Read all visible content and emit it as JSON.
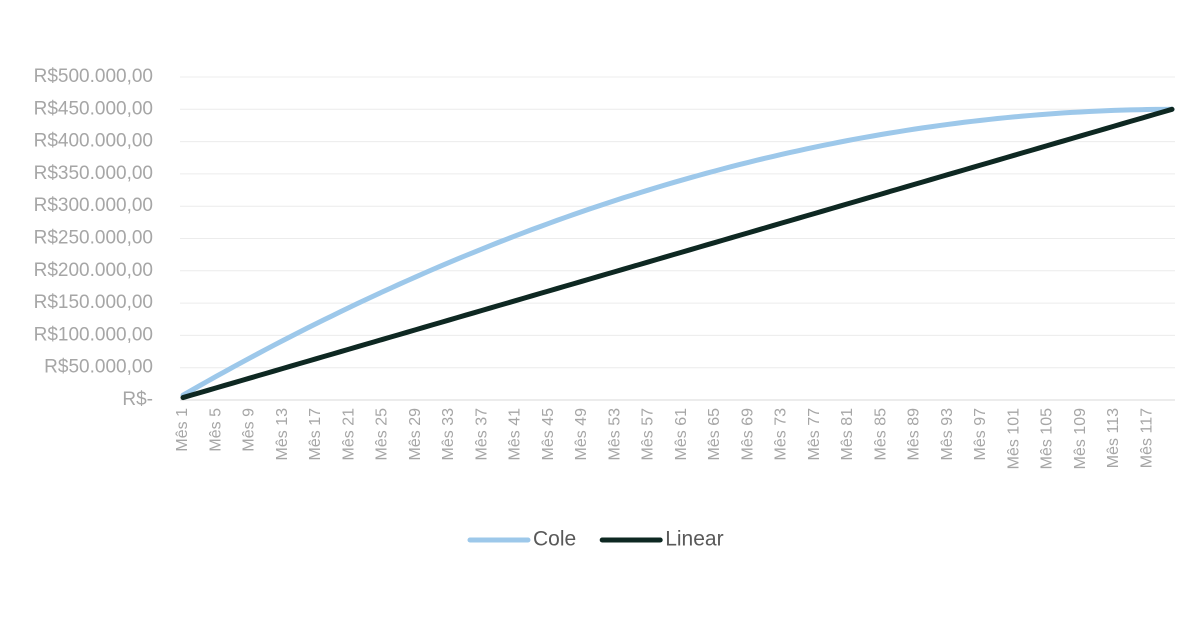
{
  "chart_data": {
    "type": "line",
    "categories": [
      "Mês 1",
      null,
      null,
      null,
      "Mês 5",
      null,
      null,
      null,
      "Mês 9",
      null,
      null,
      null,
      "Mês 13",
      null,
      null,
      null,
      "Mês 17",
      null,
      null,
      null,
      "Mês 21",
      null,
      null,
      null,
      "Mês 25",
      null,
      null,
      null,
      "Mês 29",
      null,
      null,
      null,
      "Mês 33",
      null,
      null,
      null,
      "Mês 37",
      null,
      null,
      null,
      "Mês 41",
      null,
      null,
      null,
      "Mês 45",
      null,
      null,
      null,
      "Mês 49",
      null,
      null,
      null,
      "Mês 53",
      null,
      null,
      null,
      "Mês 57",
      null,
      null,
      null,
      "Mês 61",
      null,
      null,
      null,
      "Mês 65",
      null,
      null,
      null,
      "Mês 69",
      null,
      null,
      null,
      "Mês 73",
      null,
      null,
      null,
      "Mês 77",
      null,
      null,
      null,
      "Mês 81",
      null,
      null,
      null,
      "Mês 85",
      null,
      null,
      null,
      "Mês 89",
      null,
      null,
      null,
      "Mês 93",
      null,
      null,
      null,
      "Mês 97",
      null,
      null,
      null,
      "Mês 101",
      null,
      null,
      null,
      "Mês 105",
      null,
      null,
      null,
      "Mês 109",
      null,
      null,
      null,
      "Mês 113",
      null,
      null,
      null,
      "Mês 117",
      null,
      null,
      null
    ],
    "series": [
      {
        "name": "Cole",
        "color": "#9dc8ea",
        "values": [
          7400,
          14800,
          22100,
          29400,
          36600,
          43700,
          50800,
          57800,
          64700,
          71600,
          78400,
          85200,
          91900,
          98500,
          105100,
          111600,
          118000,
          124400,
          130700,
          137000,
          143200,
          149300,
          155400,
          161400,
          167400,
          173200,
          179100,
          184800,
          190500,
          196200,
          201800,
          207300,
          212700,
          218100,
          223500,
          228700,
          233900,
          239100,
          244200,
          249200,
          254100,
          259000,
          263900,
          268600,
          273300,
          278000,
          282600,
          287100,
          291600,
          296000,
          300300,
          304600,
          308800,
          313000,
          317000,
          321100,
          325000,
          328900,
          332800,
          336600,
          340300,
          343900,
          347500,
          351100,
          354500,
          358000,
          361300,
          364600,
          367800,
          371000,
          374100,
          377100,
          380100,
          383000,
          385800,
          388600,
          391400,
          394000,
          396600,
          399200,
          401700,
          404100,
          406400,
          408700,
          411000,
          413100,
          415200,
          417300,
          419300,
          421200,
          423000,
          424800,
          426600,
          428200,
          429900,
          431400,
          432900,
          434300,
          435700,
          437000,
          438200,
          439400,
          440500,
          441600,
          442600,
          443500,
          444400,
          445200,
          445900,
          446600,
          447200,
          447800,
          448300,
          448700,
          449100,
          449400,
          449600,
          449800,
          449900,
          450000
        ]
      },
      {
        "name": "Linear",
        "color": "#0e2822",
        "values": [
          3750,
          7500,
          11250,
          15000,
          18750,
          22500,
          26250,
          30000,
          33750,
          37500,
          41250,
          45000,
          48750,
          52500,
          56250,
          60000,
          63750,
          67500,
          71250,
          75000,
          78750,
          82500,
          86250,
          90000,
          93750,
          97500,
          101250,
          105000,
          108750,
          112500,
          116250,
          120000,
          123750,
          127500,
          131250,
          135000,
          138750,
          142500,
          146250,
          150000,
          153750,
          157500,
          161250,
          165000,
          168750,
          172500,
          176250,
          180000,
          183750,
          187500,
          191250,
          195000,
          198750,
          202500,
          206250,
          210000,
          213750,
          217500,
          221250,
          225000,
          228750,
          232500,
          236250,
          240000,
          243750,
          247500,
          251250,
          255000,
          258750,
          262500,
          266250,
          270000,
          273750,
          277500,
          281250,
          285000,
          288750,
          292500,
          296250,
          300000,
          303750,
          307500,
          311250,
          315000,
          318750,
          322500,
          326250,
          330000,
          333750,
          337500,
          341250,
          345000,
          348750,
          352500,
          356250,
          360000,
          363750,
          367500,
          371250,
          375000,
          378750,
          382500,
          386250,
          390000,
          393750,
          397500,
          401250,
          405000,
          408750,
          412500,
          416250,
          420000,
          423750,
          427500,
          431250,
          435000,
          438750,
          442500,
          446250,
          450000
        ]
      }
    ],
    "ylim": [
      0,
      500000
    ],
    "yticks": [
      {
        "value": 0,
        "label": "R$-"
      },
      {
        "value": 50000,
        "label": "R$50.000,00"
      },
      {
        "value": 100000,
        "label": "R$100.000,00"
      },
      {
        "value": 150000,
        "label": "R$150.000,00"
      },
      {
        "value": 200000,
        "label": "R$200.000,00"
      },
      {
        "value": 250000,
        "label": "R$250.000,00"
      },
      {
        "value": 300000,
        "label": "R$300.000,00"
      },
      {
        "value": 350000,
        "label": "R$350.000,00"
      },
      {
        "value": 400000,
        "label": "R$400.000,00"
      },
      {
        "value": 450000,
        "label": "R$450.000,00"
      },
      {
        "value": 500000,
        "label": "R$500.000,00"
      }
    ],
    "grid": true,
    "legend": "bottom"
  }
}
